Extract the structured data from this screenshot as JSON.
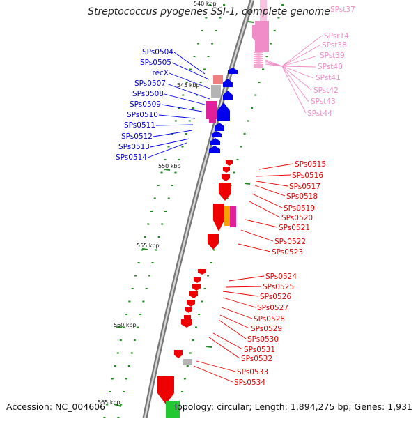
{
  "title": "Streptococcus pyogenes SSI-1, complete genome",
  "footer": {
    "accession": "Accession: NC_004606",
    "topology": "Topology: circular; Length: 1,894,275 bp; Genes: 1,931"
  },
  "colors": {
    "backbone": "#8c8c8c",
    "blue_genes": "#0000ee",
    "red_genes": "#ee0000",
    "pink_rna": "#f08cc8",
    "magenta": "#e0209a",
    "salmon": "#f08080",
    "grey_gene": "#b4b4b4",
    "orange": "#f5a000",
    "green": "#22c832",
    "tick_green": "#228b22"
  },
  "scale_labels": [
    {
      "id": "tick-540",
      "text": "540 kbp"
    },
    {
      "id": "tick-545",
      "text": "545 kbp"
    },
    {
      "id": "tick-550",
      "text": "550 kbp"
    },
    {
      "id": "tick-555",
      "text": "555 kbp"
    },
    {
      "id": "tick-560",
      "text": "560 kbp"
    },
    {
      "id": "tick-565",
      "text": "565 kbp"
    }
  ],
  "blue_labels": [
    "SPs0504",
    "SPs0505",
    "recX",
    "SPs0507",
    "SPs0508",
    "SPs0509",
    "SPs0510",
    "SPs0511",
    "SPs0512",
    "SPs0513",
    "SPs0514"
  ],
  "pink_labels": [
    "SPst37",
    "SPsr14",
    "SPst38",
    "SPst39",
    "SPst40",
    "SPst41",
    "SPst42",
    "SPst43",
    "SPst44"
  ],
  "red_labels": [
    "SPs0515",
    "SPs0516",
    "SPs0517",
    "SPs0518",
    "SPs0519",
    "SPs0520",
    "SPs0521",
    "SPs0522",
    "SPs0523",
    "SPs0524",
    "SPs0525",
    "SPs0526",
    "SPs0527",
    "SPs0528",
    "SPs0529",
    "SPs0530",
    "SPs0531",
    "SPs0532",
    "SPs0533",
    "SPs0534"
  ]
}
